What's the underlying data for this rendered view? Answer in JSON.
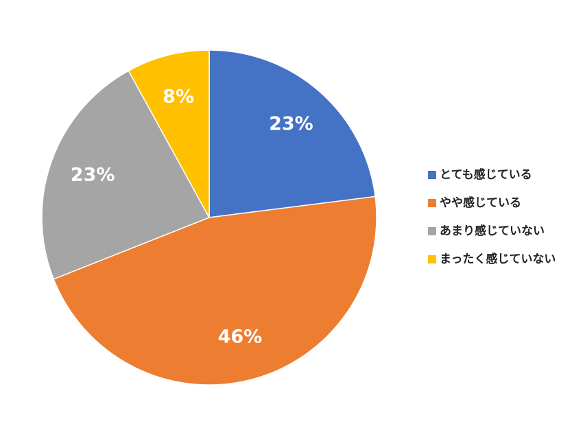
{
  "chart_data": {
    "type": "pie",
    "categories": [
      "とても感じている",
      "やや感じている",
      "あまり感じていない",
      "まったく感じていない"
    ],
    "values": [
      23,
      46,
      23,
      8
    ],
    "value_labels": [
      "23%",
      "46%",
      "23%",
      "8%"
    ],
    "colors": [
      "#4472c4",
      "#ed7d31",
      "#a5a5a5",
      "#ffc000"
    ],
    "legend": "right"
  }
}
